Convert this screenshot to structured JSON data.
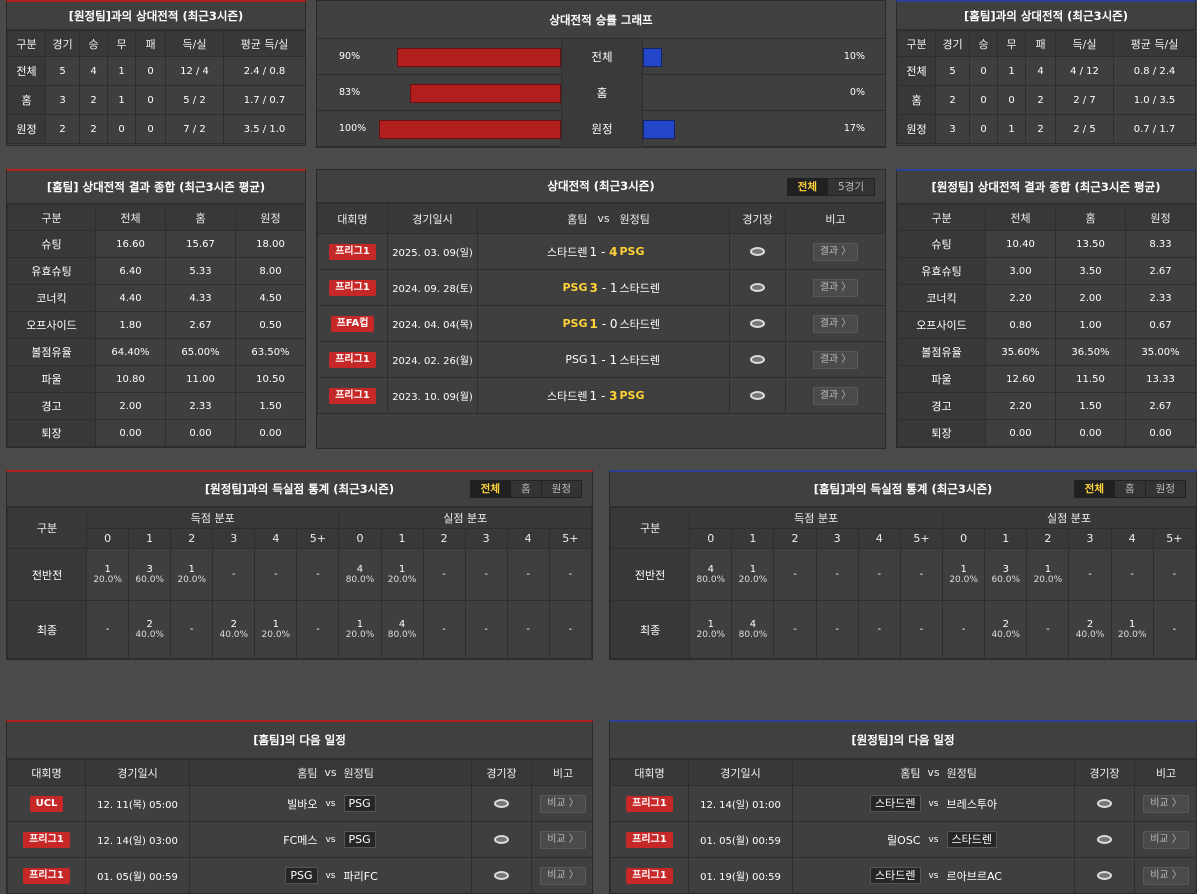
{
  "away_h2h": {
    "title": "[원정팀]과의 상대전적 (최근3시즌)",
    "headers": [
      "구분",
      "경기",
      "승",
      "무",
      "패",
      "득/실",
      "평균 득/실"
    ],
    "rows": [
      [
        "전체",
        "5",
        "4",
        "1",
        "0",
        "12 / 4",
        "2.4 / 0.8"
      ],
      [
        "홈",
        "3",
        "2",
        "1",
        "0",
        "5 / 2",
        "1.7 / 0.7"
      ],
      [
        "원정",
        "2",
        "2",
        "0",
        "0",
        "7 / 2",
        "3.5 / 1.0"
      ]
    ]
  },
  "graph": {
    "title": "상대전적 승률 그래프",
    "rows": [
      {
        "label": "전체",
        "left": "90%",
        "right": "10%",
        "left_value": 90,
        "right_value": 10
      },
      {
        "label": "홈",
        "left": "83%",
        "right": "0%",
        "left_value": 83,
        "right_value": 0
      },
      {
        "label": "원정",
        "left": "100%",
        "right": "17%",
        "left_value": 100,
        "right_value": 17
      }
    ]
  },
  "home_h2h": {
    "title": "[홈팀]과의 상대전적 (최근3시즌)",
    "headers": [
      "구분",
      "경기",
      "승",
      "무",
      "패",
      "득/실",
      "평균 득/실"
    ],
    "rows": [
      [
        "전체",
        "5",
        "0",
        "1",
        "4",
        "4 / 12",
        "0.8 / 2.4"
      ],
      [
        "홈",
        "2",
        "0",
        "0",
        "2",
        "2 / 7",
        "1.0 / 3.5"
      ],
      [
        "원정",
        "3",
        "0",
        "1",
        "2",
        "2 / 5",
        "0.7 / 1.7"
      ]
    ]
  },
  "home_summary": {
    "title": "[홈팀] 상대전적 결과 종합 (최근3시즌 평균)",
    "headers": [
      "구분",
      "전체",
      "홈",
      "원정"
    ],
    "rows": [
      [
        "슈팅",
        "16.60",
        "15.67",
        "18.00"
      ],
      [
        "유효슈팅",
        "6.40",
        "5.33",
        "8.00"
      ],
      [
        "코너킥",
        "4.40",
        "4.33",
        "4.50"
      ],
      [
        "오프사이드",
        "1.80",
        "2.67",
        "0.50"
      ],
      [
        "볼점유율",
        "64.40%",
        "65.00%",
        "63.50%"
      ],
      [
        "파울",
        "10.80",
        "11.00",
        "10.50"
      ],
      [
        "경고",
        "2.00",
        "2.33",
        "1.50"
      ],
      [
        "퇴장",
        "0.00",
        "0.00",
        "0.00"
      ]
    ]
  },
  "away_summary": {
    "title": "[원정팀] 상대전적 결과 종합 (최근3시즌 평균)",
    "headers": [
      "구분",
      "전체",
      "홈",
      "원정"
    ],
    "rows": [
      [
        "슈팅",
        "10.40",
        "13.50",
        "8.33"
      ],
      [
        "유효슈팅",
        "3.00",
        "3.50",
        "2.67"
      ],
      [
        "코너킥",
        "2.20",
        "2.00",
        "2.33"
      ],
      [
        "오프사이드",
        "0.80",
        "1.00",
        "0.67"
      ],
      [
        "볼점유율",
        "35.60%",
        "36.50%",
        "35.00%"
      ],
      [
        "파울",
        "12.60",
        "11.50",
        "13.33"
      ],
      [
        "경고",
        "2.20",
        "1.50",
        "2.67"
      ],
      [
        "퇴장",
        "0.00",
        "0.00",
        "0.00"
      ]
    ]
  },
  "matches": {
    "title": "상대전적 (최근3시즌)",
    "tabs": [
      "전체",
      "5경기"
    ],
    "headers": {
      "comp": "대회명",
      "date": "경기일시",
      "home": "홈팀",
      "vs": "vs",
      "away": "원정팀",
      "stadium": "경기장",
      "note": "비고"
    },
    "button_label": "결과 〉",
    "rows": [
      {
        "comp": "프리그1",
        "date": "2025. 03. 09(일)",
        "home": "스타드렌",
        "hs": "1",
        "as": "4",
        "away": "PSG",
        "win": "away"
      },
      {
        "comp": "프리그1",
        "date": "2024. 09. 28(토)",
        "home": "PSG",
        "hs": "3",
        "as": "1",
        "away": "스타드렌",
        "win": "home"
      },
      {
        "comp": "프FA컵",
        "date": "2024. 04. 04(목)",
        "home": "PSG",
        "hs": "1",
        "as": "0",
        "away": "스타드렌",
        "win": "home"
      },
      {
        "comp": "프리그1",
        "date": "2024. 02. 26(월)",
        "home": "PSG",
        "hs": "1",
        "as": "1",
        "away": "스타드렌",
        "win": "none"
      },
      {
        "comp": "프리그1",
        "date": "2023. 10. 09(월)",
        "home": "스타드렌",
        "hs": "1",
        "as": "3",
        "away": "PSG",
        "win": "away"
      }
    ]
  },
  "away_goals": {
    "title": "[원정팀]과의 득실점 통계 (최근3시즌)",
    "tabs": [
      "전체",
      "홈",
      "원정"
    ],
    "label_col": "구분",
    "scored": "득점 분포",
    "conceded": "실점 분포",
    "buckets": [
      "0",
      "1",
      "2",
      "3",
      "4",
      "5+"
    ],
    "rows": [
      {
        "label": "전반전",
        "cells": [
          [
            "1",
            "20.0%"
          ],
          [
            "3",
            "60.0%"
          ],
          [
            "1",
            "20.0%"
          ],
          [
            "-",
            ""
          ],
          [
            "-",
            ""
          ],
          [
            "-",
            ""
          ],
          [
            "4",
            "80.0%"
          ],
          [
            "1",
            "20.0%"
          ],
          [
            "-",
            ""
          ],
          [
            "-",
            ""
          ],
          [
            "-",
            ""
          ],
          [
            "-",
            ""
          ]
        ]
      },
      {
        "label": "최종",
        "cells": [
          [
            "-",
            ""
          ],
          [
            "2",
            "40.0%"
          ],
          [
            "-",
            ""
          ],
          [
            "2",
            "40.0%"
          ],
          [
            "1",
            "20.0%"
          ],
          [
            "-",
            ""
          ],
          [
            "1",
            "20.0%"
          ],
          [
            "4",
            "80.0%"
          ],
          [
            "-",
            ""
          ],
          [
            "-",
            ""
          ],
          [
            "-",
            ""
          ],
          [
            "-",
            ""
          ]
        ]
      }
    ]
  },
  "home_goals": {
    "title": "[홈팀]과의 득실점 통계 (최근3시즌)",
    "tabs": [
      "전체",
      "홈",
      "원정"
    ],
    "label_col": "구분",
    "scored": "득점 분포",
    "conceded": "실점 분포",
    "buckets": [
      "0",
      "1",
      "2",
      "3",
      "4",
      "5+"
    ],
    "rows": [
      {
        "label": "전반전",
        "cells": [
          [
            "4",
            "80.0%"
          ],
          [
            "1",
            "20.0%"
          ],
          [
            "-",
            ""
          ],
          [
            "-",
            ""
          ],
          [
            "-",
            ""
          ],
          [
            "-",
            ""
          ],
          [
            "1",
            "20.0%"
          ],
          [
            "3",
            "60.0%"
          ],
          [
            "1",
            "20.0%"
          ],
          [
            "-",
            ""
          ],
          [
            "-",
            ""
          ],
          [
            "-",
            ""
          ]
        ]
      },
      {
        "label": "최종",
        "cells": [
          [
            "1",
            "20.0%"
          ],
          [
            "4",
            "80.0%"
          ],
          [
            "-",
            ""
          ],
          [
            "-",
            ""
          ],
          [
            "-",
            ""
          ],
          [
            "-",
            ""
          ],
          [
            "-",
            ""
          ],
          [
            "2",
            "40.0%"
          ],
          [
            "-",
            ""
          ],
          [
            "2",
            "40.0%"
          ],
          [
            "1",
            "20.0%"
          ],
          [
            "-",
            ""
          ]
        ]
      }
    ]
  },
  "home_next": {
    "title": "[홈팀]의 다음 일정",
    "headers": {
      "comp": "대회명",
      "date": "경기일시",
      "home": "홈팀",
      "vs": "vs",
      "away": "원정팀",
      "stadium": "경기장",
      "note": "비고"
    },
    "button_label": "비교 〉",
    "rows": [
      {
        "comp": "UCL",
        "date": "12. 11(목) 05:00",
        "home": "빌바오",
        "away": "PSG",
        "box": "away"
      },
      {
        "comp": "프리그1",
        "date": "12. 14(일) 03:00",
        "home": "FC메스",
        "away": "PSG",
        "box": "away"
      },
      {
        "comp": "프리그1",
        "date": "01. 05(월) 00:59",
        "home": "PSG",
        "away": "파리FC",
        "box": "home"
      }
    ]
  },
  "away_next": {
    "title": "[원정팀]의 다음 일정",
    "headers": {
      "comp": "대회명",
      "date": "경기일시",
      "home": "홈팀",
      "vs": "vs",
      "away": "원정팀",
      "stadium": "경기장",
      "note": "비고"
    },
    "button_label": "비교 〉",
    "rows": [
      {
        "comp": "프리그1",
        "date": "12. 14(일) 01:00",
        "home": "스타드렌",
        "away": "브레스투아",
        "box": "home"
      },
      {
        "comp": "프리그1",
        "date": "01. 05(월) 00:59",
        "home": "릴OSC",
        "away": "스타드렌",
        "box": "away"
      },
      {
        "comp": "프리그1",
        "date": "01. 19(월) 00:59",
        "home": "스타드렌",
        "away": "르아브르AC",
        "box": "home"
      }
    ]
  }
}
